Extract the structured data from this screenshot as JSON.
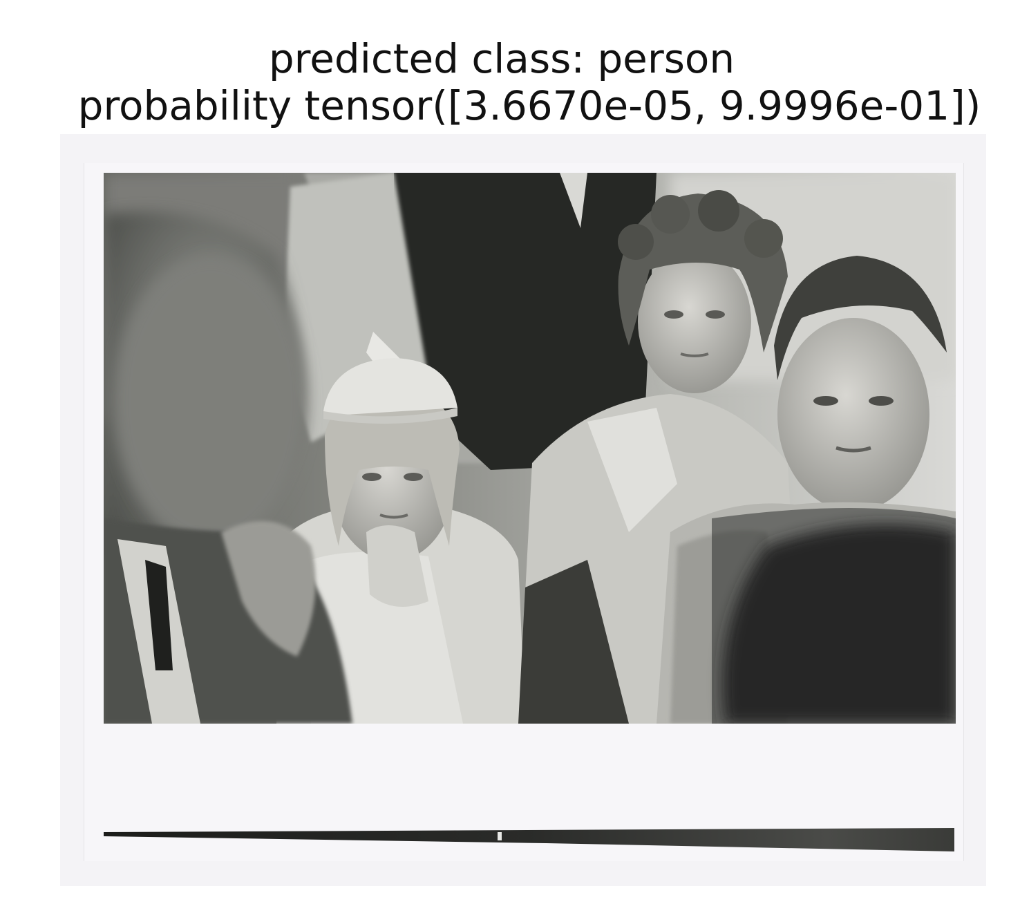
{
  "figure": {
    "title_line_1": "predicted class: person",
    "title_line_2": "probability tensor([3.6670e-05, 9.9996e-01])"
  },
  "photo": {
    "subject": "black-and-white-crowd-photo",
    "style": "grayscale"
  }
}
